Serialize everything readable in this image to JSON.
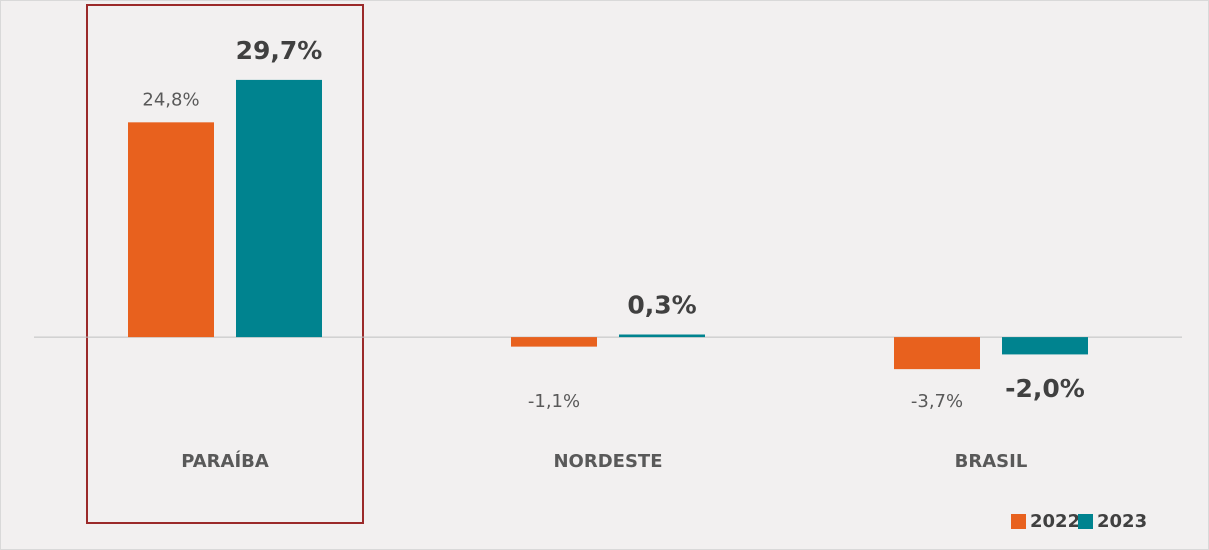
{
  "chart_data": {
    "type": "bar",
    "categories": [
      "PARAÍBA",
      "NORDESTE",
      "BRASIL"
    ],
    "series": [
      {
        "name": "2022",
        "color": "#e8611e",
        "values": [
          24.8,
          -1.1,
          -3.7
        ],
        "value_labels": [
          "24,8%",
          "-1,1%",
          "-3,7%"
        ]
      },
      {
        "name": "2023",
        "color": "#00838f",
        "values": [
          29.7,
          0.3,
          -2.0
        ],
        "value_labels": [
          "29,7%",
          "0,3%",
          "-2,0%"
        ]
      }
    ],
    "ylim": [
      -15,
      35
    ],
    "grid": false,
    "legend": "bottom-right"
  }
}
